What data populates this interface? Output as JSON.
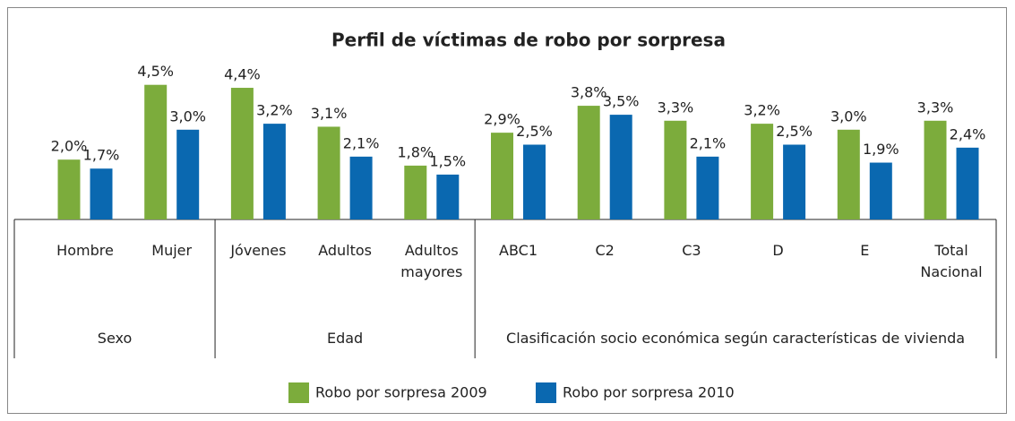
{
  "chart_data": {
    "type": "bar",
    "title": "Perfil de víctimas de robo por sorpresa",
    "groups": [
      {
        "name": "Sexo",
        "categories": [
          "Hombre",
          "Mujer"
        ]
      },
      {
        "name": "Edad",
        "categories": [
          "Jóvenes",
          "Adultos",
          "Adultos mayores"
        ]
      },
      {
        "name": "Clasificación socio económica según características de vivienda",
        "categories": [
          "ABC1",
          "C2",
          "C3",
          "D",
          "E",
          "Total Nacional"
        ]
      }
    ],
    "series": [
      {
        "name": "Robo por sorpresa 2009",
        "color": "#7cac3c",
        "values": [
          2.0,
          4.5,
          4.4,
          3.1,
          1.8,
          2.9,
          3.8,
          3.3,
          3.2,
          3.0,
          3.3
        ],
        "value_labels": [
          "2,0%",
          "4,5%",
          "4,4%",
          "3,1%",
          "1,8%",
          "2,9%",
          "3,8%",
          "3,3%",
          "3,2%",
          "3,0%",
          "3,3%"
        ]
      },
      {
        "name": "Robo por sorpresa 2010",
        "color": "#0a68b0",
        "values": [
          1.7,
          3.0,
          3.2,
          2.1,
          1.5,
          2.5,
          3.5,
          2.1,
          2.5,
          1.9,
          2.4
        ],
        "value_labels": [
          "1,7%",
          "3,0%",
          "3,2%",
          "2,1%",
          "1,5%",
          "2,5%",
          "3,5%",
          "2,1%",
          "2,5%",
          "1,9%",
          "2,4%"
        ]
      }
    ],
    "ylim": [
      0,
      5
    ],
    "legend": "bottom"
  }
}
